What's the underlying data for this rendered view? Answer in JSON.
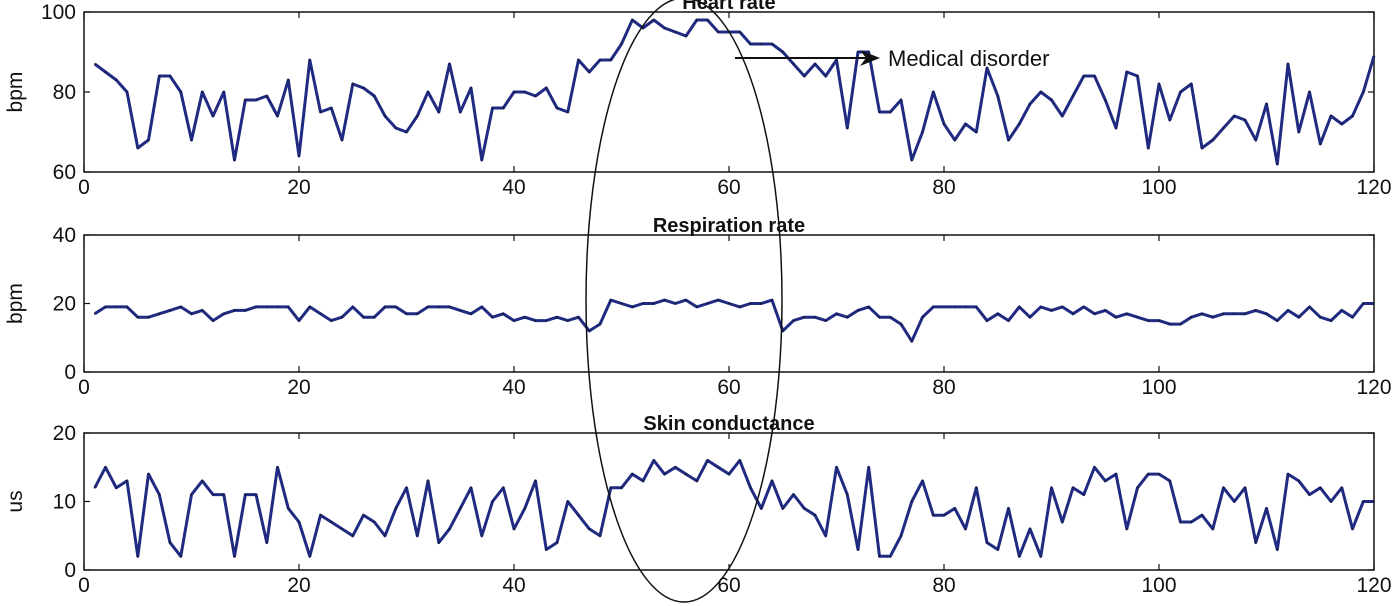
{
  "chart_data": [
    {
      "type": "line",
      "title": "Heart rate",
      "xlabel": "",
      "ylabel": "bpm",
      "xlim": [
        0,
        120
      ],
      "ylim": [
        60,
        100
      ],
      "xticks": [
        0,
        20,
        40,
        60,
        80,
        100,
        120
      ],
      "yticks": [
        60,
        80,
        100
      ],
      "grid": false,
      "color": "#1f2a80",
      "annotation": "Medical disorder",
      "series": [
        {
          "values": [
            87,
            85,
            83,
            80,
            66,
            68,
            84,
            84,
            80,
            68,
            80,
            74,
            80,
            63,
            78,
            78,
            79,
            74,
            83,
            64,
            88,
            75,
            76,
            68,
            82,
            81,
            79,
            74,
            71,
            70,
            74,
            80,
            75,
            87,
            75,
            81,
            63,
            76,
            76,
            80,
            80,
            79,
            81,
            76,
            75,
            88,
            85,
            88,
            88,
            92,
            98,
            96,
            98,
            96,
            95,
            94,
            98,
            98,
            95,
            95,
            95,
            92,
            92,
            92,
            90,
            87,
            84,
            87,
            84,
            88,
            71,
            90,
            90,
            75,
            75,
            78,
            63,
            70,
            80,
            72,
            68,
            72,
            70,
            86,
            79,
            68,
            72,
            77,
            80,
            78,
            74,
            79,
            84,
            84,
            78,
            71,
            85,
            84,
            66,
            82,
            73,
            80,
            82,
            66,
            68,
            71,
            74,
            73,
            68,
            77,
            62,
            87,
            70,
            80,
            67,
            74,
            72,
            74,
            80,
            89
          ]
        }
      ]
    },
    {
      "type": "line",
      "title": "Respiration rate",
      "xlabel": "",
      "ylabel": "bpm",
      "xlim": [
        0,
        120
      ],
      "ylim": [
        0,
        40
      ],
      "xticks": [
        0,
        20,
        40,
        60,
        80,
        100,
        120
      ],
      "yticks": [
        0,
        20,
        40
      ],
      "grid": false,
      "color": "#1f2a80",
      "series": [
        {
          "values": [
            17,
            19,
            19,
            19,
            16,
            16,
            17,
            18,
            19,
            17,
            18,
            15,
            17,
            18,
            18,
            19,
            19,
            19,
            19,
            15,
            19,
            17,
            15,
            16,
            19,
            16,
            16,
            19,
            19,
            17,
            17,
            19,
            19,
            19,
            18,
            17,
            19,
            16,
            17,
            15,
            16,
            15,
            15,
            16,
            15,
            16,
            12,
            14,
            21,
            20,
            19,
            20,
            20,
            21,
            20,
            21,
            19,
            20,
            21,
            20,
            19,
            20,
            20,
            21,
            12,
            15,
            16,
            16,
            15,
            17,
            16,
            18,
            19,
            16,
            16,
            14,
            9,
            16,
            19,
            19,
            19,
            19,
            19,
            15,
            17,
            15,
            19,
            16,
            19,
            18,
            19,
            17,
            19,
            17,
            18,
            16,
            17,
            16,
            15,
            15,
            14,
            14,
            16,
            17,
            16,
            17,
            17,
            17,
            18,
            17,
            15,
            18,
            16,
            19,
            16,
            15,
            18,
            16,
            20,
            20
          ]
        }
      ]
    },
    {
      "type": "line",
      "title": "Skin conductance",
      "xlabel": "",
      "ylabel": "us",
      "xlim": [
        0,
        120
      ],
      "ylim": [
        0,
        20
      ],
      "xticks": [
        0,
        20,
        40,
        60,
        80,
        100,
        120
      ],
      "yticks": [
        0,
        10,
        20
      ],
      "grid": false,
      "color": "#1f2a80",
      "series": [
        {
          "values": [
            12,
            15,
            12,
            13,
            2,
            14,
            11,
            4,
            2,
            11,
            13,
            11,
            11,
            2,
            11,
            11,
            4,
            15,
            9,
            7,
            2,
            8,
            7,
            6,
            5,
            8,
            7,
            5,
            9,
            12,
            5,
            13,
            4,
            6,
            9,
            12,
            5,
            10,
            12,
            6,
            9,
            13,
            3,
            4,
            10,
            8,
            6,
            5,
            12,
            12,
            14,
            13,
            16,
            14,
            15,
            14,
            13,
            16,
            15,
            14,
            16,
            12,
            9,
            13,
            9,
            11,
            9,
            8,
            5,
            15,
            11,
            3,
            15,
            2,
            2,
            5,
            10,
            13,
            8,
            8,
            9,
            6,
            12,
            4,
            3,
            9,
            2,
            6,
            2,
            12,
            7,
            12,
            11,
            15,
            13,
            14,
            6,
            12,
            14,
            14,
            13,
            7,
            7,
            8,
            6,
            12,
            10,
            12,
            4,
            9,
            3,
            14,
            13,
            11,
            12,
            10,
            12,
            6,
            10,
            10
          ]
        }
      ]
    }
  ]
}
